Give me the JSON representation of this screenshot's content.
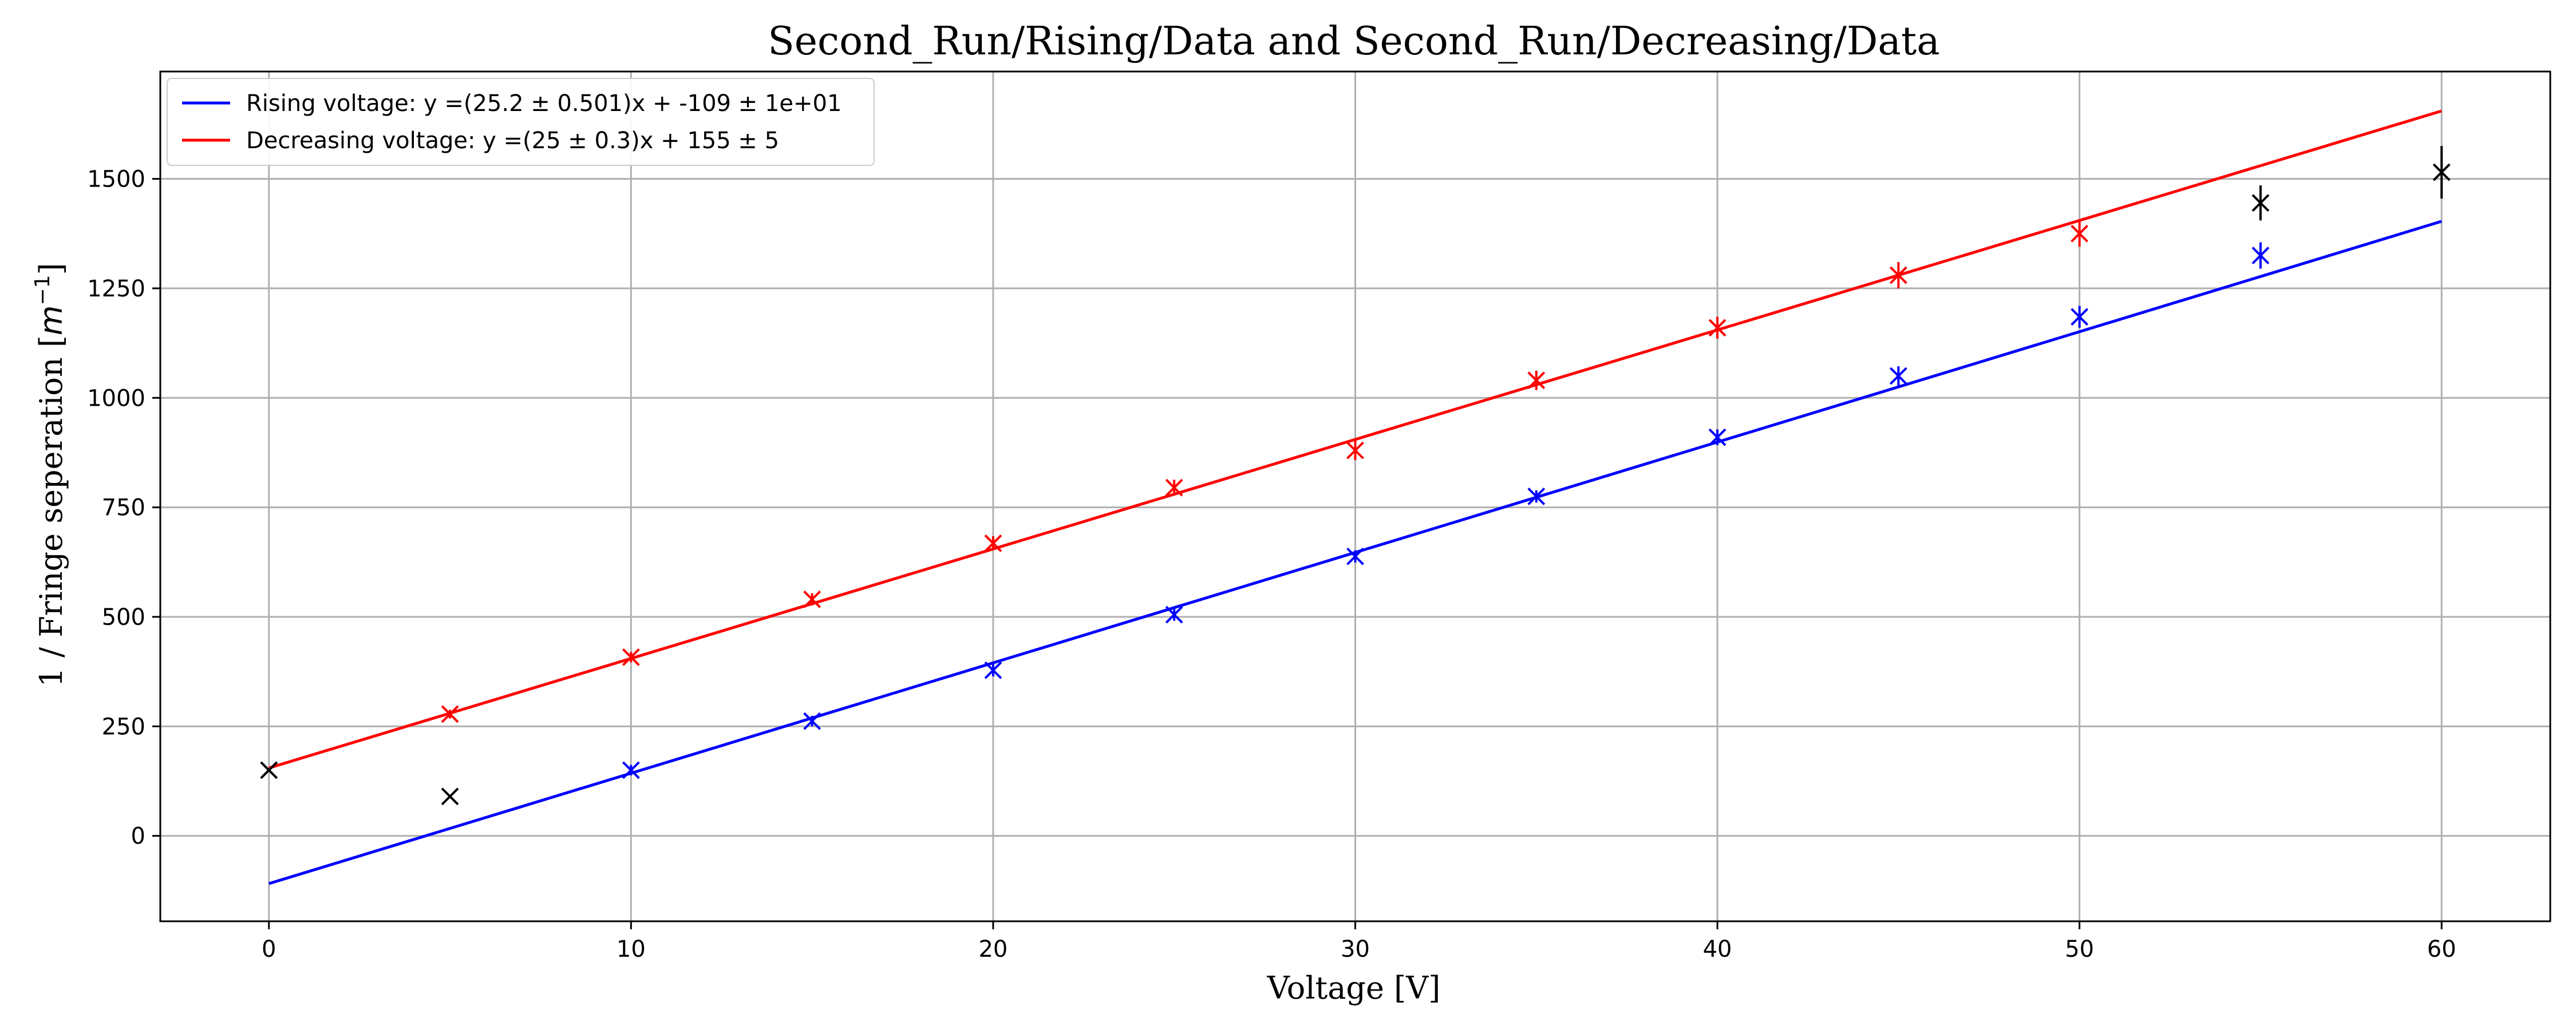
{
  "chart_data": {
    "type": "scatter",
    "title": "Second_Run/Rising/Data and Second_Run/Decreasing/Data",
    "xlabel": "Voltage [V]",
    "ylabel_text": "1 / Fringe seperation [",
    "ylabel_math": "m",
    "ylabel_exp": "−1",
    "ylabel_close": "]",
    "xlim": [
      -3,
      63
    ],
    "ylim": [
      -195,
      1745
    ],
    "xticks": [
      0,
      10,
      20,
      30,
      40,
      50,
      60
    ],
    "yticks": [
      0,
      250,
      500,
      750,
      1000,
      1250,
      1500
    ],
    "grid": true,
    "legend_position": "top-left",
    "colors": {
      "rising": "#0000ff",
      "decreasing": "#ff0000",
      "outlier": "#000000",
      "grid": "#b0b0b0"
    },
    "series": [
      {
        "name": "Rising voltage: y =(25.2 ± 0.501)x + -109 ± 1e+01",
        "color": "#0000ff",
        "fit": {
          "slope": 25.2,
          "intercept": -109,
          "x_range": [
            0,
            60
          ]
        },
        "points": [
          {
            "x": 10,
            "y": 150,
            "err": 12
          },
          {
            "x": 15,
            "y": 262,
            "err": 12
          },
          {
            "x": 20,
            "y": 378,
            "err": 14
          },
          {
            "x": 25,
            "y": 505,
            "err": 14
          },
          {
            "x": 30,
            "y": 638,
            "err": 14
          },
          {
            "x": 35,
            "y": 775,
            "err": 14
          },
          {
            "x": 40,
            "y": 910,
            "err": 18
          },
          {
            "x": 45,
            "y": 1050,
            "err": 22
          },
          {
            "x": 50,
            "y": 1185,
            "err": 25
          },
          {
            "x": 55,
            "y": 1325,
            "err": 30
          }
        ]
      },
      {
        "name": "Decreasing voltage: y =(25 ± 0.3)x + 155 ± 5",
        "color": "#ff0000",
        "fit": {
          "slope": 25,
          "intercept": 155,
          "x_range": [
            0,
            60
          ]
        },
        "points": [
          {
            "x": 5,
            "y": 278,
            "err": 10
          },
          {
            "x": 10,
            "y": 408,
            "err": 12
          },
          {
            "x": 15,
            "y": 540,
            "err": 14
          },
          {
            "x": 20,
            "y": 668,
            "err": 16
          },
          {
            "x": 25,
            "y": 795,
            "err": 18
          },
          {
            "x": 30,
            "y": 880,
            "err": 22
          },
          {
            "x": 35,
            "y": 1040,
            "err": 22
          },
          {
            "x": 40,
            "y": 1160,
            "err": 25
          },
          {
            "x": 45,
            "y": 1280,
            "err": 30
          },
          {
            "x": 50,
            "y": 1375,
            "err": 30
          }
        ]
      },
      {
        "color": "#000000",
        "points": [
          {
            "x": 0,
            "y": 150,
            "err": 0
          },
          {
            "x": 5,
            "y": 90,
            "err": 0
          },
          {
            "x": 55,
            "y": 1445,
            "err": 40
          },
          {
            "x": 60,
            "y": 1515,
            "err": 60
          }
        ]
      }
    ]
  }
}
